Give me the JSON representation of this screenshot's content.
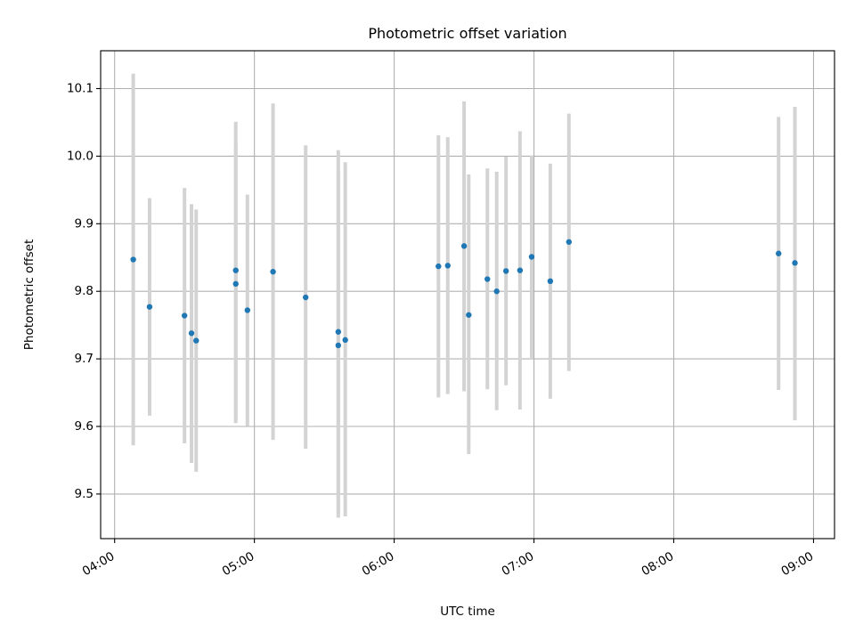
{
  "chart_data": {
    "type": "scatter",
    "title": "Photometric offset variation",
    "xlabel": "UTC time",
    "ylabel": "Photometric offset",
    "xlim": [
      "03:54",
      "09:09"
    ],
    "ylim": [
      9.434,
      10.156
    ],
    "x_ticks": [
      "04:00",
      "05:00",
      "06:00",
      "07:00",
      "08:00",
      "09:00"
    ],
    "y_ticks": [
      "9.5",
      "9.6",
      "9.7",
      "9.8",
      "9.9",
      "10.0",
      "10.1"
    ],
    "grid": true,
    "colors": {
      "points": "#1f77b4",
      "error_bars": "#d3d3d3",
      "grid": "#b0b0b0"
    },
    "points": [
      {
        "time": "04:08",
        "y": 9.847,
        "err_low": 9.572,
        "err_high": 10.122
      },
      {
        "time": "04:15",
        "y": 9.777,
        "err_low": 9.616,
        "err_high": 9.938
      },
      {
        "time": "04:30",
        "y": 9.764,
        "err_low": 9.575,
        "err_high": 9.953
      },
      {
        "time": "04:33",
        "y": 9.738,
        "err_low": 9.546,
        "err_high": 9.929
      },
      {
        "time": "04:35",
        "y": 9.727,
        "err_low": 9.533,
        "err_high": 9.921
      },
      {
        "time": "04:52",
        "y": 9.831,
        "err_low": 9.611,
        "err_high": 10.051
      },
      {
        "time": "04:52",
        "y": 9.811,
        "err_low": 9.605,
        "err_high": 10.017
      },
      {
        "time": "04:57",
        "y": 9.772,
        "err_low": 9.601,
        "err_high": 9.943
      },
      {
        "time": "05:08",
        "y": 9.829,
        "err_low": 9.58,
        "err_high": 10.078
      },
      {
        "time": "05:22",
        "y": 9.791,
        "err_low": 9.567,
        "err_high": 10.016
      },
      {
        "time": "05:36",
        "y": 9.74,
        "err_low": 9.47,
        "err_high": 10.009
      },
      {
        "time": "05:36",
        "y": 9.72,
        "err_low": 9.465,
        "err_high": 9.98
      },
      {
        "time": "05:39",
        "y": 9.728,
        "err_low": 9.467,
        "err_high": 9.991
      },
      {
        "time": "06:19",
        "y": 9.837,
        "err_low": 9.643,
        "err_high": 10.031
      },
      {
        "time": "06:23",
        "y": 9.838,
        "err_low": 9.648,
        "err_high": 10.028
      },
      {
        "time": "06:30",
        "y": 9.867,
        "err_low": 9.652,
        "err_high": 10.081
      },
      {
        "time": "06:32",
        "y": 9.765,
        "err_low": 9.559,
        "err_high": 9.973
      },
      {
        "time": "06:40",
        "y": 9.818,
        "err_low": 9.655,
        "err_high": 9.982
      },
      {
        "time": "06:44",
        "y": 9.8,
        "err_low": 9.624,
        "err_high": 9.977
      },
      {
        "time": "06:48",
        "y": 9.83,
        "err_low": 9.661,
        "err_high": 9.999
      },
      {
        "time": "06:54",
        "y": 9.831,
        "err_low": 9.625,
        "err_high": 10.037
      },
      {
        "time": "06:59",
        "y": 9.851,
        "err_low": 9.7,
        "err_high": 10.001
      },
      {
        "time": "07:07",
        "y": 9.815,
        "err_low": 9.641,
        "err_high": 9.989
      },
      {
        "time": "07:15",
        "y": 9.873,
        "err_low": 9.682,
        "err_high": 10.063
      },
      {
        "time": "08:45",
        "y": 9.856,
        "err_low": 9.654,
        "err_high": 10.058
      },
      {
        "time": "08:52",
        "y": 9.842,
        "err_low": 9.609,
        "err_high": 10.073
      }
    ]
  }
}
